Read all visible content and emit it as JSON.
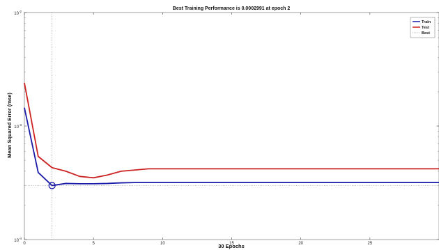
{
  "chart_data": {
    "type": "line",
    "title": "Best Training Performance is 0.0002991 at epoch 2",
    "xlabel": "30 Epochs",
    "ylabel": "Mean Squared Error  (mse)",
    "xlim": [
      0,
      30
    ],
    "ylim": [
      0.0001,
      0.01
    ],
    "yscale": "log",
    "x_ticks": [
      0,
      5,
      10,
      15,
      20,
      25
    ],
    "x_tick_labels": [
      "0",
      "5",
      "10",
      "15",
      "20",
      "25"
    ],
    "y_ticks": [
      0.0001,
      0.001,
      0.01
    ],
    "y_tick_labels": [
      {
        "base": "10",
        "exp": "-4"
      },
      {
        "base": "10",
        "exp": "-3"
      },
      {
        "base": "10",
        "exp": "-2"
      }
    ],
    "grid": false,
    "legend_position": "top-right",
    "series": [
      {
        "name": "Train",
        "color": "#1a1aa8",
        "x": [
          0,
          1,
          2,
          3,
          4,
          5,
          6,
          7,
          8,
          9,
          10,
          11,
          12,
          13,
          14,
          15,
          16,
          17,
          18,
          19,
          20,
          21,
          22,
          23,
          24,
          25,
          26,
          27,
          28,
          29,
          30
        ],
        "y": [
          0.00145,
          0.00039,
          0.0002991,
          0.000312,
          0.00031,
          0.00031,
          0.000312,
          0.000316,
          0.000318,
          0.000318,
          0.000318,
          0.000318,
          0.000318,
          0.000318,
          0.000318,
          0.000318,
          0.000318,
          0.000318,
          0.000318,
          0.000318,
          0.000318,
          0.000318,
          0.000318,
          0.000318,
          0.000318,
          0.000318,
          0.000318,
          0.000318,
          0.000318,
          0.000318,
          0.000318
        ]
      },
      {
        "name": "Test",
        "color": "#cc2222",
        "x": [
          0,
          1,
          2,
          3,
          4,
          5,
          6,
          7,
          8,
          9,
          10,
          11,
          12,
          13,
          14,
          15,
          16,
          17,
          18,
          19,
          20,
          21,
          22,
          23,
          24,
          25,
          26,
          27,
          28,
          29,
          30
        ],
        "y": [
          0.0024,
          0.00054,
          0.00043,
          0.0004,
          0.00036,
          0.00035,
          0.00037,
          0.0004,
          0.00041,
          0.00042,
          0.00042,
          0.00042,
          0.00042,
          0.00042,
          0.00042,
          0.00042,
          0.00042,
          0.00042,
          0.00042,
          0.00042,
          0.00042,
          0.00042,
          0.00042,
          0.00042,
          0.00042,
          0.00042,
          0.00042,
          0.00042,
          0.00042,
          0.00042,
          0.00042
        ]
      }
    ],
    "best": {
      "name": "Best",
      "epoch": 2,
      "value": 0.0002991,
      "color": "#999999"
    }
  }
}
